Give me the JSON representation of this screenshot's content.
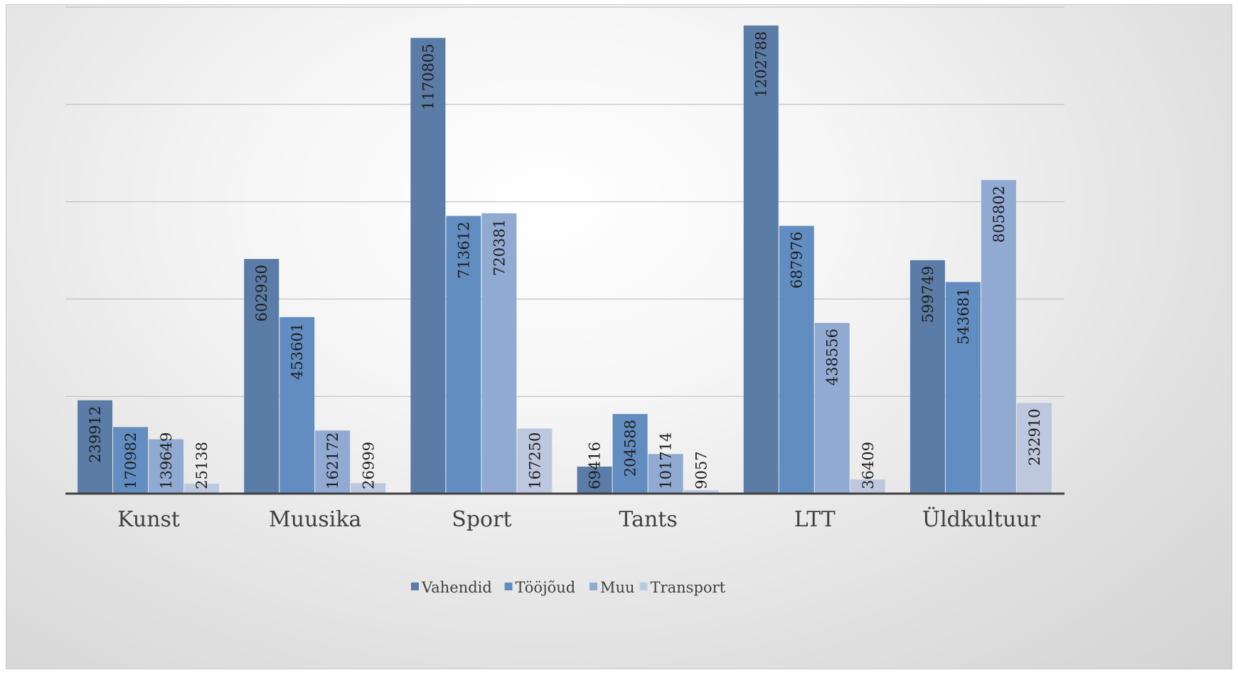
{
  "chart_data": {
    "type": "bar",
    "title": "",
    "xlabel": "",
    "ylabel": "",
    "ylim": [
      0,
      1250000
    ],
    "grid": true,
    "legend_position": "bottom",
    "categories": [
      "Kunst",
      "Muusika",
      "Sport",
      "Tants",
      "LTT",
      "Üldkultuur"
    ],
    "series": [
      {
        "name": "Vahendid",
        "color": "#5a7ca6",
        "values": [
          239912,
          602930,
          1170805,
          69416,
          1202788,
          599749
        ]
      },
      {
        "name": "Tööjõud",
        "color": "#628dc0",
        "values": [
          170982,
          453601,
          713612,
          204588,
          687976,
          543681
        ]
      },
      {
        "name": "Muu",
        "color": "#90aad2",
        "values": [
          139649,
          162172,
          720381,
          101714,
          438556,
          805802
        ]
      },
      {
        "name": "Transport",
        "color": "#bdc8df",
        "values": [
          25138,
          26999,
          167250,
          9057,
          36409,
          232910
        ]
      }
    ]
  }
}
